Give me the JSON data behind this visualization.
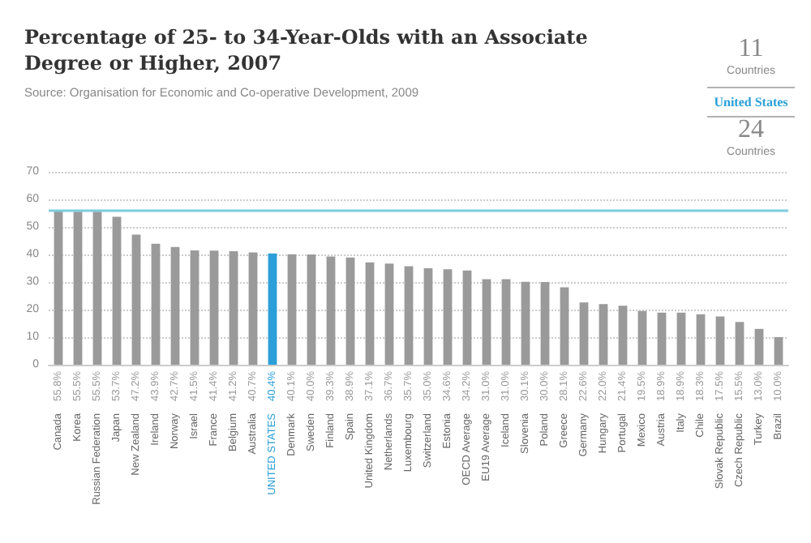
{
  "chart_data": {
    "type": "bar",
    "title": "Percentage of 25- to 34-Year-Olds with an Associate Degree or Higher, 2007",
    "subtitle": "Source: Organisation for Economic and Co-operative Development, 2009",
    "annotations": [
      "11",
      "Countries",
      "United States",
      "24",
      "Countries"
    ],
    "categories": [
      "Canada",
      "Korea",
      "Russian Federation",
      "Japan",
      "New Zealand",
      "Ireland",
      "Norway",
      "Israel",
      "France",
      "Belgium",
      "Australia",
      "UNITED STATES",
      "Denmark",
      "Sweden",
      "Finland",
      "Spain",
      "United Kingdom",
      "Netherlands",
      "Luxembourg",
      "Switzerland",
      "Estonia",
      "OECD Average",
      "EU19 Average",
      "Iceland",
      "Slovenia",
      "Poland",
      "Greece",
      "Germany",
      "Hungary",
      "Portugal",
      "Mexico",
      "Austria",
      "Italy",
      "Chile",
      "Slovak Republic",
      "Czech Republic",
      "Turkey",
      "Brazil"
    ],
    "values": [
      55.8,
      55.5,
      55.5,
      53.7,
      47.2,
      43.9,
      42.7,
      41.5,
      41.4,
      41.2,
      40.7,
      40.4,
      40.1,
      40.0,
      39.3,
      38.9,
      37.1,
      36.7,
      35.7,
      35.0,
      34.6,
      34.2,
      31.0,
      31.0,
      30.1,
      30.0,
      28.1,
      22.6,
      22.0,
      21.4,
      19.5,
      18.9,
      18.9,
      18.3,
      17.5,
      15.5,
      13.0,
      10.0
    ],
    "value_labels": [
      "55.8%",
      "55.5%",
      "55.5%",
      "53.7%",
      "47.2%",
      "43.9%",
      "42.7%",
      "41.5%",
      "41.4%",
      "41.2%",
      "40.7%",
      "40.4%",
      "40.1%",
      "40.0%",
      "39.3%",
      "38.9%",
      "37.1%",
      "36.7%",
      "35.7%",
      "35.0%",
      "34.6%",
      "34.2%",
      "31.0%",
      "31.0%",
      "30.1%",
      "30.0%",
      "28.1%",
      "22.6%",
      "22.0%",
      "21.4%",
      "19.5%",
      "18.9%",
      "18.9%",
      "18.3%",
      "17.5%",
      "15.5%",
      "13.0%",
      "10.0%"
    ],
    "colors": [
      "#9a9a9a",
      "#9a9a9a",
      "#9a9a9a",
      "#9a9a9a",
      "#9a9a9a",
      "#9a9a9a",
      "#9a9a9a",
      "#9a9a9a",
      "#9a9a9a",
      "#9a9a9a",
      "#9a9a9a",
      "#2a9fd8",
      "#9a9a9a",
      "#9a9a9a",
      "#9a9a9a",
      "#9a9a9a",
      "#9a9a9a",
      "#9a9a9a",
      "#9a9a9a",
      "#9a9a9a",
      "#9a9a9a",
      "#9a9a9a",
      "#9a9a9a",
      "#9a9a9a",
      "#9a9a9a",
      "#9a9a9a",
      "#9a9a9a",
      "#9a9a9a",
      "#9a9a9a",
      "#9a9a9a",
      "#9a9a9a",
      "#9a9a9a",
      "#9a9a9a",
      "#9a9a9a",
      "#9a9a9a",
      "#9a9a9a",
      "#9a9a9a",
      "#9a9a9a"
    ],
    "ylim": [
      0,
      70
    ],
    "yticks": [
      0,
      10,
      20,
      30,
      40,
      50,
      60,
      70
    ],
    "grid": "y",
    "ref_lines": [
      {
        "axis": "y",
        "value": 55.8,
        "color": "#7fcbe0"
      }
    ]
  }
}
